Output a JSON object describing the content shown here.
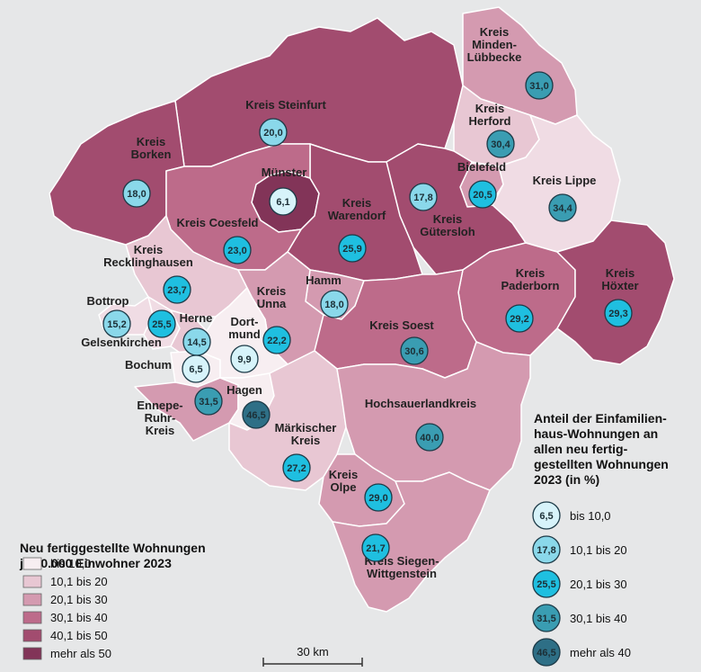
{
  "colors": {
    "bg": "#e6e7e8",
    "region_classes": [
      "#f7eef1",
      "#e8c7d3",
      "#d49ab0",
      "#bd6b8a",
      "#a24c6f",
      "#823458"
    ],
    "bubble_classes": [
      "#d7f3fa",
      "#8ad8ea",
      "#1fbfe0",
      "#3a9db2",
      "#2e6f86"
    ],
    "border": "#ffffff",
    "bubble_stroke": "#1c3a47"
  },
  "regions": [
    {
      "id": "minden",
      "label": [
        "Kreis",
        "Minden-",
        "Lübbecke"
      ],
      "value": "31,0",
      "bubble_class": 3
    },
    {
      "id": "herford",
      "label": [
        "Kreis",
        "Herford"
      ],
      "value": "30,4",
      "bubble_class": 3
    },
    {
      "id": "steinfurt",
      "label": [
        "Kreis Steinfurt"
      ],
      "value": "20,0",
      "bubble_class": 1
    },
    {
      "id": "borken",
      "label": [
        "Kreis",
        "Borken"
      ],
      "value": "18,0",
      "bubble_class": 1
    },
    {
      "id": "muenster",
      "label": [
        "Münster"
      ],
      "value": "6,1",
      "bubble_class": 0
    },
    {
      "id": "bielefeld",
      "label": [
        "Bielefeld"
      ],
      "value": "20,5",
      "bubble_class": 2
    },
    {
      "id": "lippe",
      "label": [
        "Kreis Lippe"
      ],
      "value": "34,4",
      "bubble_class": 3
    },
    {
      "id": "guetersloh",
      "label": [
        "Kreis",
        "Gütersloh"
      ],
      "value": "17,8",
      "bubble_class": 1
    },
    {
      "id": "warendorf",
      "label": [
        "Kreis",
        "Warendorf"
      ],
      "value": "25,9",
      "bubble_class": 2
    },
    {
      "id": "coesfeld",
      "label": [
        "Kreis Coesfeld"
      ],
      "value": "23,0",
      "bubble_class": 2
    },
    {
      "id": "recklinghausen",
      "label": [
        "Kreis",
        "Recklinghausen"
      ],
      "value": "23,7",
      "bubble_class": 2
    },
    {
      "id": "paderborn",
      "label": [
        "Kreis",
        "Paderborn"
      ],
      "value": "29,2",
      "bubble_class": 2
    },
    {
      "id": "hoexter",
      "label": [
        "Kreis",
        "Höxter"
      ],
      "value": "29,3",
      "bubble_class": 2
    },
    {
      "id": "hamm",
      "label": [
        "Hamm"
      ],
      "value": "18,0",
      "bubble_class": 1
    },
    {
      "id": "unna",
      "label": [
        "Kreis",
        "Unna"
      ],
      "value": "22,2",
      "bubble_class": 2
    },
    {
      "id": "bottrop",
      "label": [
        "Bottrop"
      ],
      "value": "15,2",
      "bubble_class": 1
    },
    {
      "id": "gelsenkirchen",
      "label": [
        "Gelsenkirchen"
      ],
      "value": "25,5",
      "bubble_class": 2
    },
    {
      "id": "herne",
      "label": [
        "Herne"
      ],
      "value": "14,5",
      "bubble_class": 1
    },
    {
      "id": "dortmund",
      "label": [
        "Dort-",
        "mund"
      ],
      "value": "9,9",
      "bubble_class": 0
    },
    {
      "id": "bochum",
      "label": [
        "Bochum"
      ],
      "value": "6,5",
      "bubble_class": 0
    },
    {
      "id": "soest",
      "label": [
        "Kreis Soest"
      ],
      "value": "30,6",
      "bubble_class": 3
    },
    {
      "id": "ennepe",
      "label": [
        "Ennepe-",
        "Ruhr-",
        "Kreis"
      ],
      "value": "31,5",
      "bubble_class": 3
    },
    {
      "id": "hagen",
      "label": [
        "Hagen"
      ],
      "value": "46,5",
      "bubble_class": 4
    },
    {
      "id": "hochsauerland",
      "label": [
        "Hochsauerlandkreis"
      ],
      "value": "40,0",
      "bubble_class": 3
    },
    {
      "id": "maerkisch",
      "label": [
        "Märkischer",
        "Kreis"
      ],
      "value": "27,2",
      "bubble_class": 2
    },
    {
      "id": "olpe",
      "label": [
        "Kreis",
        "Olpe"
      ],
      "value": "29,0",
      "bubble_class": 2
    },
    {
      "id": "siegen",
      "label": [
        "Kreis Siegen-",
        "Wittgenstein"
      ],
      "value": "21,7",
      "bubble_class": 2
    }
  ],
  "legend_bubbles": {
    "title": [
      "Anteil der Einfamilien-",
      "haus-Wohnungen an",
      "allen neu fertig-",
      "gestellten Wohnungen",
      "2023 (in %)"
    ],
    "items": [
      {
        "sample": "6,5",
        "label": "bis 10,0"
      },
      {
        "sample": "17,8",
        "label": "10,1 bis 20"
      },
      {
        "sample": "25,5",
        "label": "20,1 bis 30"
      },
      {
        "sample": "31,5",
        "label": "30,1 bis 40"
      },
      {
        "sample": "46,5",
        "label": "mehr als 40"
      }
    ]
  },
  "legend_fill": {
    "title": [
      "Neu fertiggestellte Wohnungen",
      "je 10.000 Einwohner 2023"
    ],
    "items": [
      {
        "label": "bis 10,0"
      },
      {
        "label": "10,1 bis 20"
      },
      {
        "label": "20,1 bis 30"
      },
      {
        "label": "30,1 bis 40"
      },
      {
        "label": "40,1 bis 50"
      },
      {
        "label": "mehr als 50"
      }
    ]
  },
  "scale": {
    "label": "30 km"
  }
}
